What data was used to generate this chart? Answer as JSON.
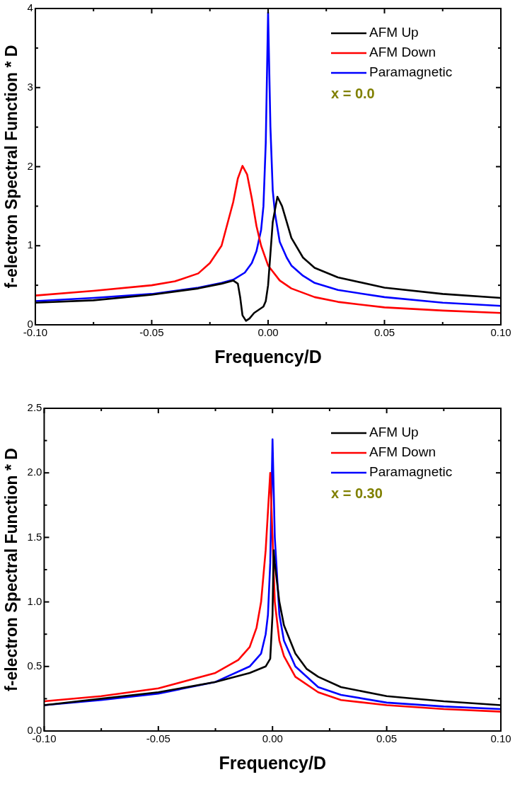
{
  "chart_data": [
    {
      "type": "line",
      "xlabel": "Frequency/D",
      "ylabel": "f-electron Spectral Function * D",
      "xlim": [
        -0.1,
        0.1
      ],
      "ylim": [
        0,
        4
      ],
      "xticks": [
        {
          "value": -0.1,
          "label": "-0.10"
        },
        {
          "value": -0.05,
          "label": "-0.05"
        },
        {
          "value": 0,
          "label": "0.00"
        },
        {
          "value": 0.05,
          "label": "0.05"
        },
        {
          "value": 0.1,
          "label": "0.10"
        }
      ],
      "yticks": [
        0,
        1,
        2,
        3,
        4
      ],
      "grid": false,
      "legend": "top right",
      "marker": "none",
      "line_style": "solid",
      "annotations": [
        "x = 0.0"
      ],
      "series": [
        {
          "name": "AFM Up",
          "color": "#000000",
          "x": [
            -0.1,
            -0.075,
            -0.05,
            -0.03,
            -0.02,
            -0.015,
            -0.013,
            -0.012,
            -0.011,
            -0.0095,
            -0.008,
            -0.006,
            -0.004,
            -0.002,
            -0.001,
            0,
            0.001,
            0.002,
            0.004,
            0.006,
            0.008,
            0.01,
            0.015,
            0.02,
            0.03,
            0.05,
            0.075,
            0.1
          ],
          "values": [
            0.28,
            0.31,
            0.38,
            0.46,
            0.52,
            0.56,
            0.52,
            0.35,
            0.12,
            0.05,
            0.08,
            0.15,
            0.19,
            0.23,
            0.3,
            0.5,
            0.9,
            1.3,
            1.62,
            1.5,
            1.3,
            1.1,
            0.85,
            0.72,
            0.6,
            0.47,
            0.39,
            0.34
          ]
        },
        {
          "name": "AFM Down",
          "color": "#ff0000",
          "x": [
            -0.1,
            -0.075,
            -0.05,
            -0.04,
            -0.03,
            -0.025,
            -0.02,
            -0.015,
            -0.013,
            -0.011,
            -0.009,
            -0.007,
            -0.005,
            -0.003,
            0,
            0.005,
            0.01,
            0.02,
            0.03,
            0.05,
            0.075,
            0.1
          ],
          "values": [
            0.37,
            0.43,
            0.5,
            0.55,
            0.65,
            0.78,
            1.0,
            1.55,
            1.85,
            2.01,
            1.9,
            1.6,
            1.25,
            1.0,
            0.75,
            0.56,
            0.46,
            0.35,
            0.29,
            0.22,
            0.18,
            0.15
          ]
        },
        {
          "name": "Paramagnetic",
          "color": "#0000ff",
          "x": [
            -0.1,
            -0.075,
            -0.05,
            -0.03,
            -0.02,
            -0.015,
            -0.01,
            -0.007,
            -0.005,
            -0.003,
            -0.002,
            -0.001,
            0,
            0.001,
            0.002,
            0.003,
            0.005,
            0.008,
            0.01,
            0.015,
            0.02,
            0.03,
            0.05,
            0.075,
            0.1
          ],
          "values": [
            0.3,
            0.34,
            0.39,
            0.47,
            0.53,
            0.57,
            0.66,
            0.78,
            0.93,
            1.2,
            1.5,
            2.3,
            3.95,
            2.5,
            1.7,
            1.4,
            1.05,
            0.85,
            0.75,
            0.62,
            0.53,
            0.44,
            0.35,
            0.28,
            0.24
          ]
        }
      ]
    },
    {
      "type": "line",
      "xlabel": "Frequency/D",
      "ylabel": "f-electron Spectral Function * D",
      "xlim": [
        -0.1,
        0.1
      ],
      "ylim": [
        0,
        2.5
      ],
      "xticks": [
        {
          "value": -0.1,
          "label": "-0.10"
        },
        {
          "value": -0.05,
          "label": "-0.05"
        },
        {
          "value": 0,
          "label": "0.00"
        },
        {
          "value": 0.05,
          "label": "0.05"
        },
        {
          "value": 0.1,
          "label": "0.10"
        }
      ],
      "yticks": [
        {
          "value": 0,
          "label": "0.0"
        },
        {
          "value": 0.5,
          "label": "0.5"
        },
        {
          "value": 1,
          "label": "1.0"
        },
        {
          "value": 1.5,
          "label": "1.5"
        },
        {
          "value": 2,
          "label": "2.0"
        },
        {
          "value": 2.5,
          "label": "2.5"
        }
      ],
      "grid": false,
      "legend": "top right",
      "marker": "none",
      "line_style": "solid",
      "annotations": [
        "x = 0.30"
      ],
      "series": [
        {
          "name": "AFM Up",
          "color": "#000000",
          "x": [
            -0.1,
            -0.075,
            -0.05,
            -0.025,
            -0.01,
            -0.003,
            -0.001,
            0,
            0.0005,
            0.001,
            0.003,
            0.005,
            0.01,
            0.015,
            0.02,
            0.03,
            0.05,
            0.075,
            0.1
          ],
          "values": [
            0.2,
            0.25,
            0.3,
            0.38,
            0.45,
            0.5,
            0.56,
            0.9,
            1.4,
            1.3,
            1.0,
            0.82,
            0.6,
            0.48,
            0.42,
            0.34,
            0.27,
            0.23,
            0.2
          ]
        },
        {
          "name": "AFM Down",
          "color": "#ff0000",
          "x": [
            -0.1,
            -0.075,
            -0.05,
            -0.025,
            -0.015,
            -0.01,
            -0.007,
            -0.005,
            -0.003,
            -0.002,
            -0.001,
            0,
            0.001,
            0.003,
            0.005,
            0.01,
            0.02,
            0.03,
            0.05,
            0.075,
            0.1
          ],
          "values": [
            0.23,
            0.27,
            0.33,
            0.45,
            0.55,
            0.65,
            0.8,
            1.0,
            1.4,
            1.7,
            2.0,
            1.5,
            1.0,
            0.7,
            0.58,
            0.42,
            0.3,
            0.24,
            0.2,
            0.17,
            0.15
          ]
        },
        {
          "name": "Paramagnetic",
          "color": "#0000ff",
          "x": [
            -0.1,
            -0.075,
            -0.05,
            -0.025,
            -0.01,
            -0.005,
            -0.003,
            -0.002,
            -0.001,
            0,
            0.001,
            0.003,
            0.005,
            0.01,
            0.02,
            0.03,
            0.05,
            0.075,
            0.1
          ],
          "values": [
            0.2,
            0.24,
            0.29,
            0.38,
            0.5,
            0.6,
            0.75,
            0.9,
            1.3,
            2.26,
            1.5,
            0.9,
            0.7,
            0.5,
            0.34,
            0.28,
            0.22,
            0.19,
            0.17
          ]
        }
      ]
    }
  ]
}
